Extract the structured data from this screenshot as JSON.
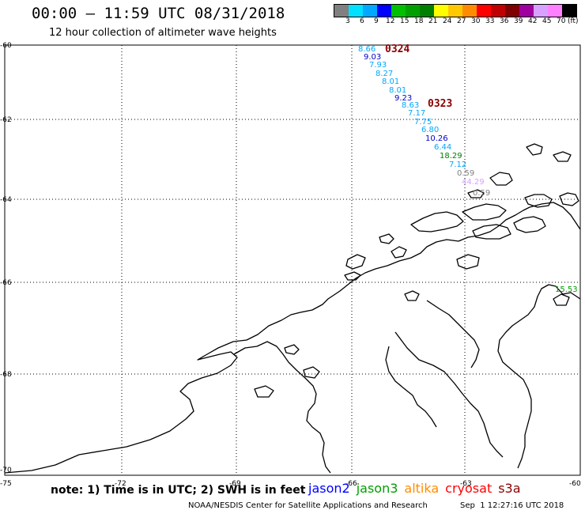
{
  "header": {
    "title": "00:00 – 11:59 UTC 08/31/2018",
    "subtitle": "12 hour collection of altimeter wave heights"
  },
  "legend": {
    "unit": "(ft)",
    "bins": [
      {
        "label": "3",
        "color": "#808080"
      },
      {
        "label": "6",
        "color": "#00e0ff"
      },
      {
        "label": "9",
        "color": "#00a8ff"
      },
      {
        "label": "12",
        "color": "#0000ff"
      },
      {
        "label": "15",
        "color": "#00c000"
      },
      {
        "label": "18",
        "color": "#00a000"
      },
      {
        "label": "21",
        "color": "#008000"
      },
      {
        "label": "24",
        "color": "#ffff00"
      },
      {
        "label": "27",
        "color": "#ffc800"
      },
      {
        "label": "30",
        "color": "#ff8c00"
      },
      {
        "label": "33",
        "color": "#ff0000"
      },
      {
        "label": "36",
        "color": "#c00000"
      },
      {
        "label": "39",
        "color": "#800000"
      },
      {
        "label": "42",
        "color": "#a000a0"
      },
      {
        "label": "45",
        "color": "#d8a0ff"
      },
      {
        "label": "70",
        "color": "#ff80ff"
      },
      {
        "label": "",
        "color": "#000000"
      }
    ]
  },
  "axes": {
    "lat_labels": [
      "-60",
      "-62",
      "-64",
      "-66",
      "-68",
      "-70",
      "-75"
    ],
    "lon_labels": [
      "-72",
      "-69",
      "-66",
      "-63",
      "-60"
    ]
  },
  "passes": [
    {
      "label": "0324",
      "color": "#8b0000"
    },
    {
      "label": "0323",
      "color": "#8b0000"
    }
  ],
  "observations": [
    {
      "value": "8.66",
      "color": "#00a8ff"
    },
    {
      "value": "9.03",
      "color": "#0000cc"
    },
    {
      "value": "7.93",
      "color": "#00a8ff"
    },
    {
      "value": "8.27",
      "color": "#00a8ff"
    },
    {
      "value": "8.01",
      "color": "#00a8ff"
    },
    {
      "value": "8.01",
      "color": "#00a8ff"
    },
    {
      "value": "9.23",
      "color": "#0000cc"
    },
    {
      "value": "8.63",
      "color": "#00a8ff"
    },
    {
      "value": "7.17",
      "color": "#00a8ff"
    },
    {
      "value": "7.75",
      "color": "#00a8ff"
    },
    {
      "value": "6.80",
      "color": "#00a8ff"
    },
    {
      "value": "10.26",
      "color": "#0000cc"
    },
    {
      "value": "6.44",
      "color": "#00a8ff"
    },
    {
      "value": "18.29",
      "color": "#008000"
    },
    {
      "value": "7.12",
      "color": "#00a8ff"
    },
    {
      "value": "0.59",
      "color": "#808080"
    },
    {
      "value": "44.29",
      "color": "#d8a0ff"
    },
    {
      "value": "0.59",
      "color": "#808080"
    },
    {
      "value": "15.53",
      "color": "#00a000"
    }
  ],
  "footer": {
    "note": "note: 1) Time is in UTC; 2) SWH is in feet",
    "satellites": [
      {
        "name": "jason2",
        "color": "#0000ff"
      },
      {
        "name": "jason3",
        "color": "#00a000"
      },
      {
        "name": "altika",
        "color": "#ff8c00"
      },
      {
        "name": "cryosat",
        "color": "#ff0000"
      },
      {
        "name": "s3a",
        "color": "#8b0000"
      }
    ],
    "credit": "NOAA/NESDIS Center for Satellite Applications and Research",
    "timestamp": "Sep  1 12:27:16 UTC 2018"
  }
}
